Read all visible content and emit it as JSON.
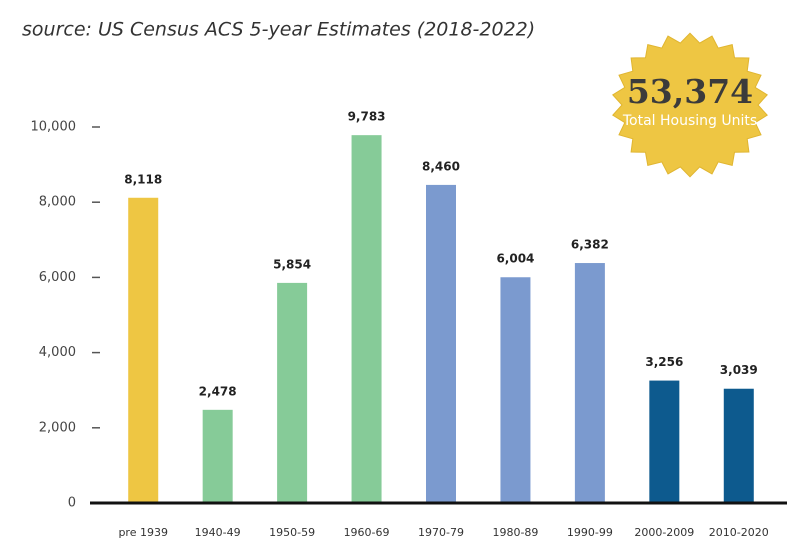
{
  "chart_data": {
    "type": "bar",
    "subtitle": "source: US Census ACS 5-year Estimates (2018-2022)",
    "categories": [
      "pre 1939",
      "1940-49",
      "1950-59",
      "1960-69",
      "1970-79",
      "1980-89",
      "1990-99",
      "2000-2009",
      "2010-2020"
    ],
    "values": [
      8118,
      2478,
      5854,
      9783,
      8460,
      6004,
      6382,
      3256,
      3039
    ],
    "value_labels": [
      "8,118",
      "2,478",
      "5,854",
      "9,783",
      "8,460",
      "6,004",
      "6,382",
      "3,256",
      "3,039"
    ],
    "colors": [
      "#eec643",
      "#86cb98",
      "#86cb98",
      "#86cb98",
      "#7b9acf",
      "#7b9acf",
      "#7b9acf",
      "#0d5a8e",
      "#0d5a8e"
    ],
    "ylim": [
      0,
      10000
    ],
    "yticks": [
      0,
      {
        "value": 2000,
        "label": "2,000"
      },
      {
        "value": 4000,
        "label": "4,000"
      },
      {
        "value": 6000,
        "label": "6,000"
      },
      {
        "value": 8000,
        "label": "8,000"
      },
      {
        "value": 10000,
        "label": "10,000"
      }
    ],
    "grid": false,
    "badge": {
      "value": "53,374",
      "label": "Total Housing Units"
    }
  }
}
